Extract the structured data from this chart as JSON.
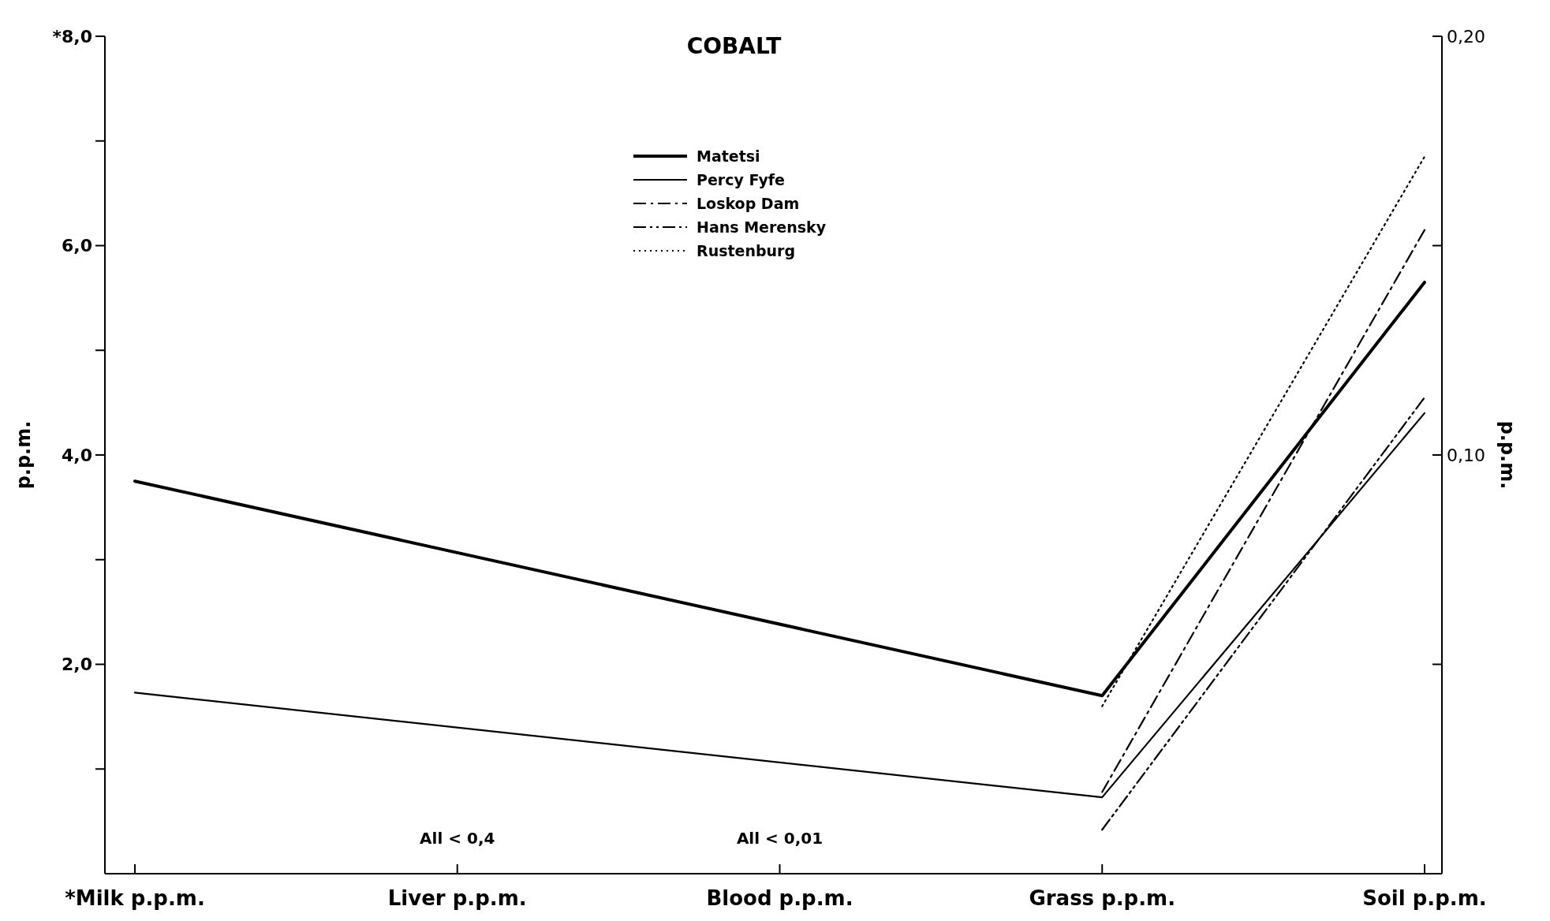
{
  "chart_data": {
    "type": "line",
    "title": "COBALT",
    "ylabel": "p.p.m.",
    "y2label": "p.p.m.",
    "categories": [
      "*Milk p.p.m.",
      "Liver p.p.m.",
      "Blood p.p.m.",
      "Grass p.p.m.",
      "Soil p.p.m."
    ],
    "series": [
      {
        "name": "Matetsi",
        "color": "#000000",
        "line_style": "solid",
        "values": [
          3.75,
          null,
          null,
          1.7,
          5.65
        ]
      },
      {
        "name": "Percy Fyfe",
        "color": "#000000",
        "line_style": "solid",
        "values": [
          1.73,
          null,
          null,
          0.73,
          4.4
        ]
      },
      {
        "name": "Loskop Dam",
        "color": "#000000",
        "line_style": "dashdot",
        "values": [
          null,
          null,
          null,
          0.78,
          6.15
        ]
      },
      {
        "name": "Hans Merensky",
        "color": "#000000",
        "line_style": "dashdotdot",
        "values": [
          null,
          null,
          null,
          0.42,
          4.55
        ]
      },
      {
        "name": "Rustenburg",
        "color": "#000000",
        "line_style": "dotted",
        "values": [
          null,
          null,
          null,
          1.6,
          6.85
        ]
      }
    ],
    "ylim": [
      0,
      8
    ],
    "yticks": [
      {
        "value": 1,
        "label": null
      },
      {
        "value": 2,
        "label": "2,0"
      },
      {
        "value": 3,
        "label": null
      },
      {
        "value": 4,
        "label": "4,0"
      },
      {
        "value": 5,
        "label": null
      },
      {
        "value": 6,
        "label": "6,0"
      },
      {
        "value": 7,
        "label": null
      },
      {
        "value": 8,
        "label": "*8,0"
      }
    ],
    "y2lim": [
      0,
      0.2
    ],
    "y2ticks": [
      {
        "value": 0.05,
        "label": null
      },
      {
        "value": 0.1,
        "label": "0,10"
      },
      {
        "value": 0.15,
        "label": null
      },
      {
        "value": 0.2,
        "label": "0,20"
      }
    ],
    "annotations": [
      "All < 0,4",
      "All < 0,01"
    ],
    "legend": "top"
  }
}
